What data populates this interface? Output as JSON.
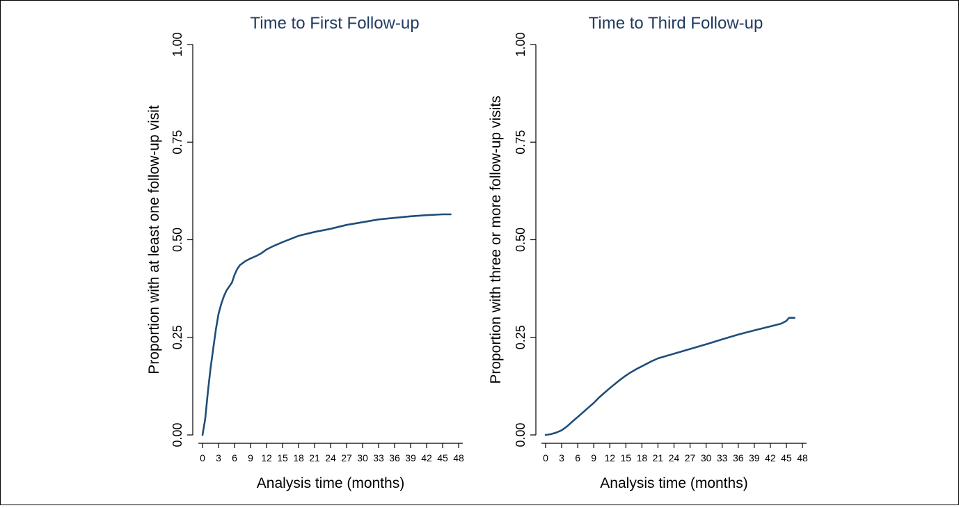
{
  "colors": {
    "curve": "#1f4e79",
    "title": "#1f3a5f",
    "axis": "#000000"
  },
  "chart_data": [
    {
      "type": "line",
      "title": "Time to First Follow-up",
      "xlabel": "Analysis time (months)",
      "ylabel": "Proportion with at least one follow-up visit",
      "xlim": [
        0,
        48
      ],
      "ylim": [
        0,
        1
      ],
      "x_ticks": [
        "0",
        "3",
        "6",
        "9",
        "12",
        "15",
        "18",
        "21",
        "24",
        "27",
        "30",
        "33",
        "36",
        "39",
        "42",
        "45",
        "48"
      ],
      "y_ticks": [
        "0.00",
        "0.25",
        "0.50",
        "0.75",
        "1.00"
      ],
      "grid": false,
      "legend": "none",
      "series": [
        {
          "x": [
            0,
            0.5,
            1,
            1.5,
            2,
            2.5,
            3,
            3.5,
            4,
            4.5,
            5,
            5.5,
            6,
            6.5,
            7,
            8,
            9,
            10,
            11,
            12,
            13,
            15,
            18,
            21,
            24,
            27,
            30,
            33,
            36,
            39,
            42,
            45,
            46.5
          ],
          "y": [
            0.0,
            0.04,
            0.11,
            0.17,
            0.22,
            0.27,
            0.31,
            0.335,
            0.355,
            0.37,
            0.38,
            0.39,
            0.41,
            0.425,
            0.435,
            0.445,
            0.452,
            0.458,
            0.465,
            0.475,
            0.482,
            0.494,
            0.51,
            0.52,
            0.528,
            0.538,
            0.545,
            0.552,
            0.556,
            0.56,
            0.563,
            0.565,
            0.565
          ]
        }
      ]
    },
    {
      "type": "line",
      "title": "Time to Third Follow-up",
      "xlabel": "Analysis time (months)",
      "ylabel": "Proportion with three or more follow-up visits",
      "xlim": [
        0,
        48
      ],
      "ylim": [
        0,
        1
      ],
      "x_ticks": [
        "0",
        "3",
        "6",
        "9",
        "12",
        "15",
        "18",
        "21",
        "24",
        "27",
        "30",
        "33",
        "36",
        "39",
        "42",
        "45",
        "48"
      ],
      "y_ticks": [
        "0.00",
        "0.25",
        "0.50",
        "0.75",
        "1.00"
      ],
      "grid": false,
      "legend": "none",
      "series": [
        {
          "x": [
            0,
            1,
            2,
            3,
            4,
            5,
            6,
            7,
            8,
            9,
            10,
            11,
            12,
            13,
            14,
            15,
            16,
            17,
            18,
            19,
            20,
            21,
            22,
            24,
            26,
            28,
            30,
            33,
            36,
            39,
            42,
            44,
            45,
            45.5,
            46.5
          ],
          "y": [
            0.0,
            0.002,
            0.006,
            0.012,
            0.022,
            0.034,
            0.046,
            0.058,
            0.07,
            0.082,
            0.096,
            0.108,
            0.12,
            0.131,
            0.142,
            0.152,
            0.161,
            0.169,
            0.176,
            0.183,
            0.19,
            0.196,
            0.2,
            0.208,
            0.216,
            0.224,
            0.232,
            0.245,
            0.257,
            0.268,
            0.278,
            0.285,
            0.292,
            0.3,
            0.3
          ]
        }
      ]
    }
  ]
}
